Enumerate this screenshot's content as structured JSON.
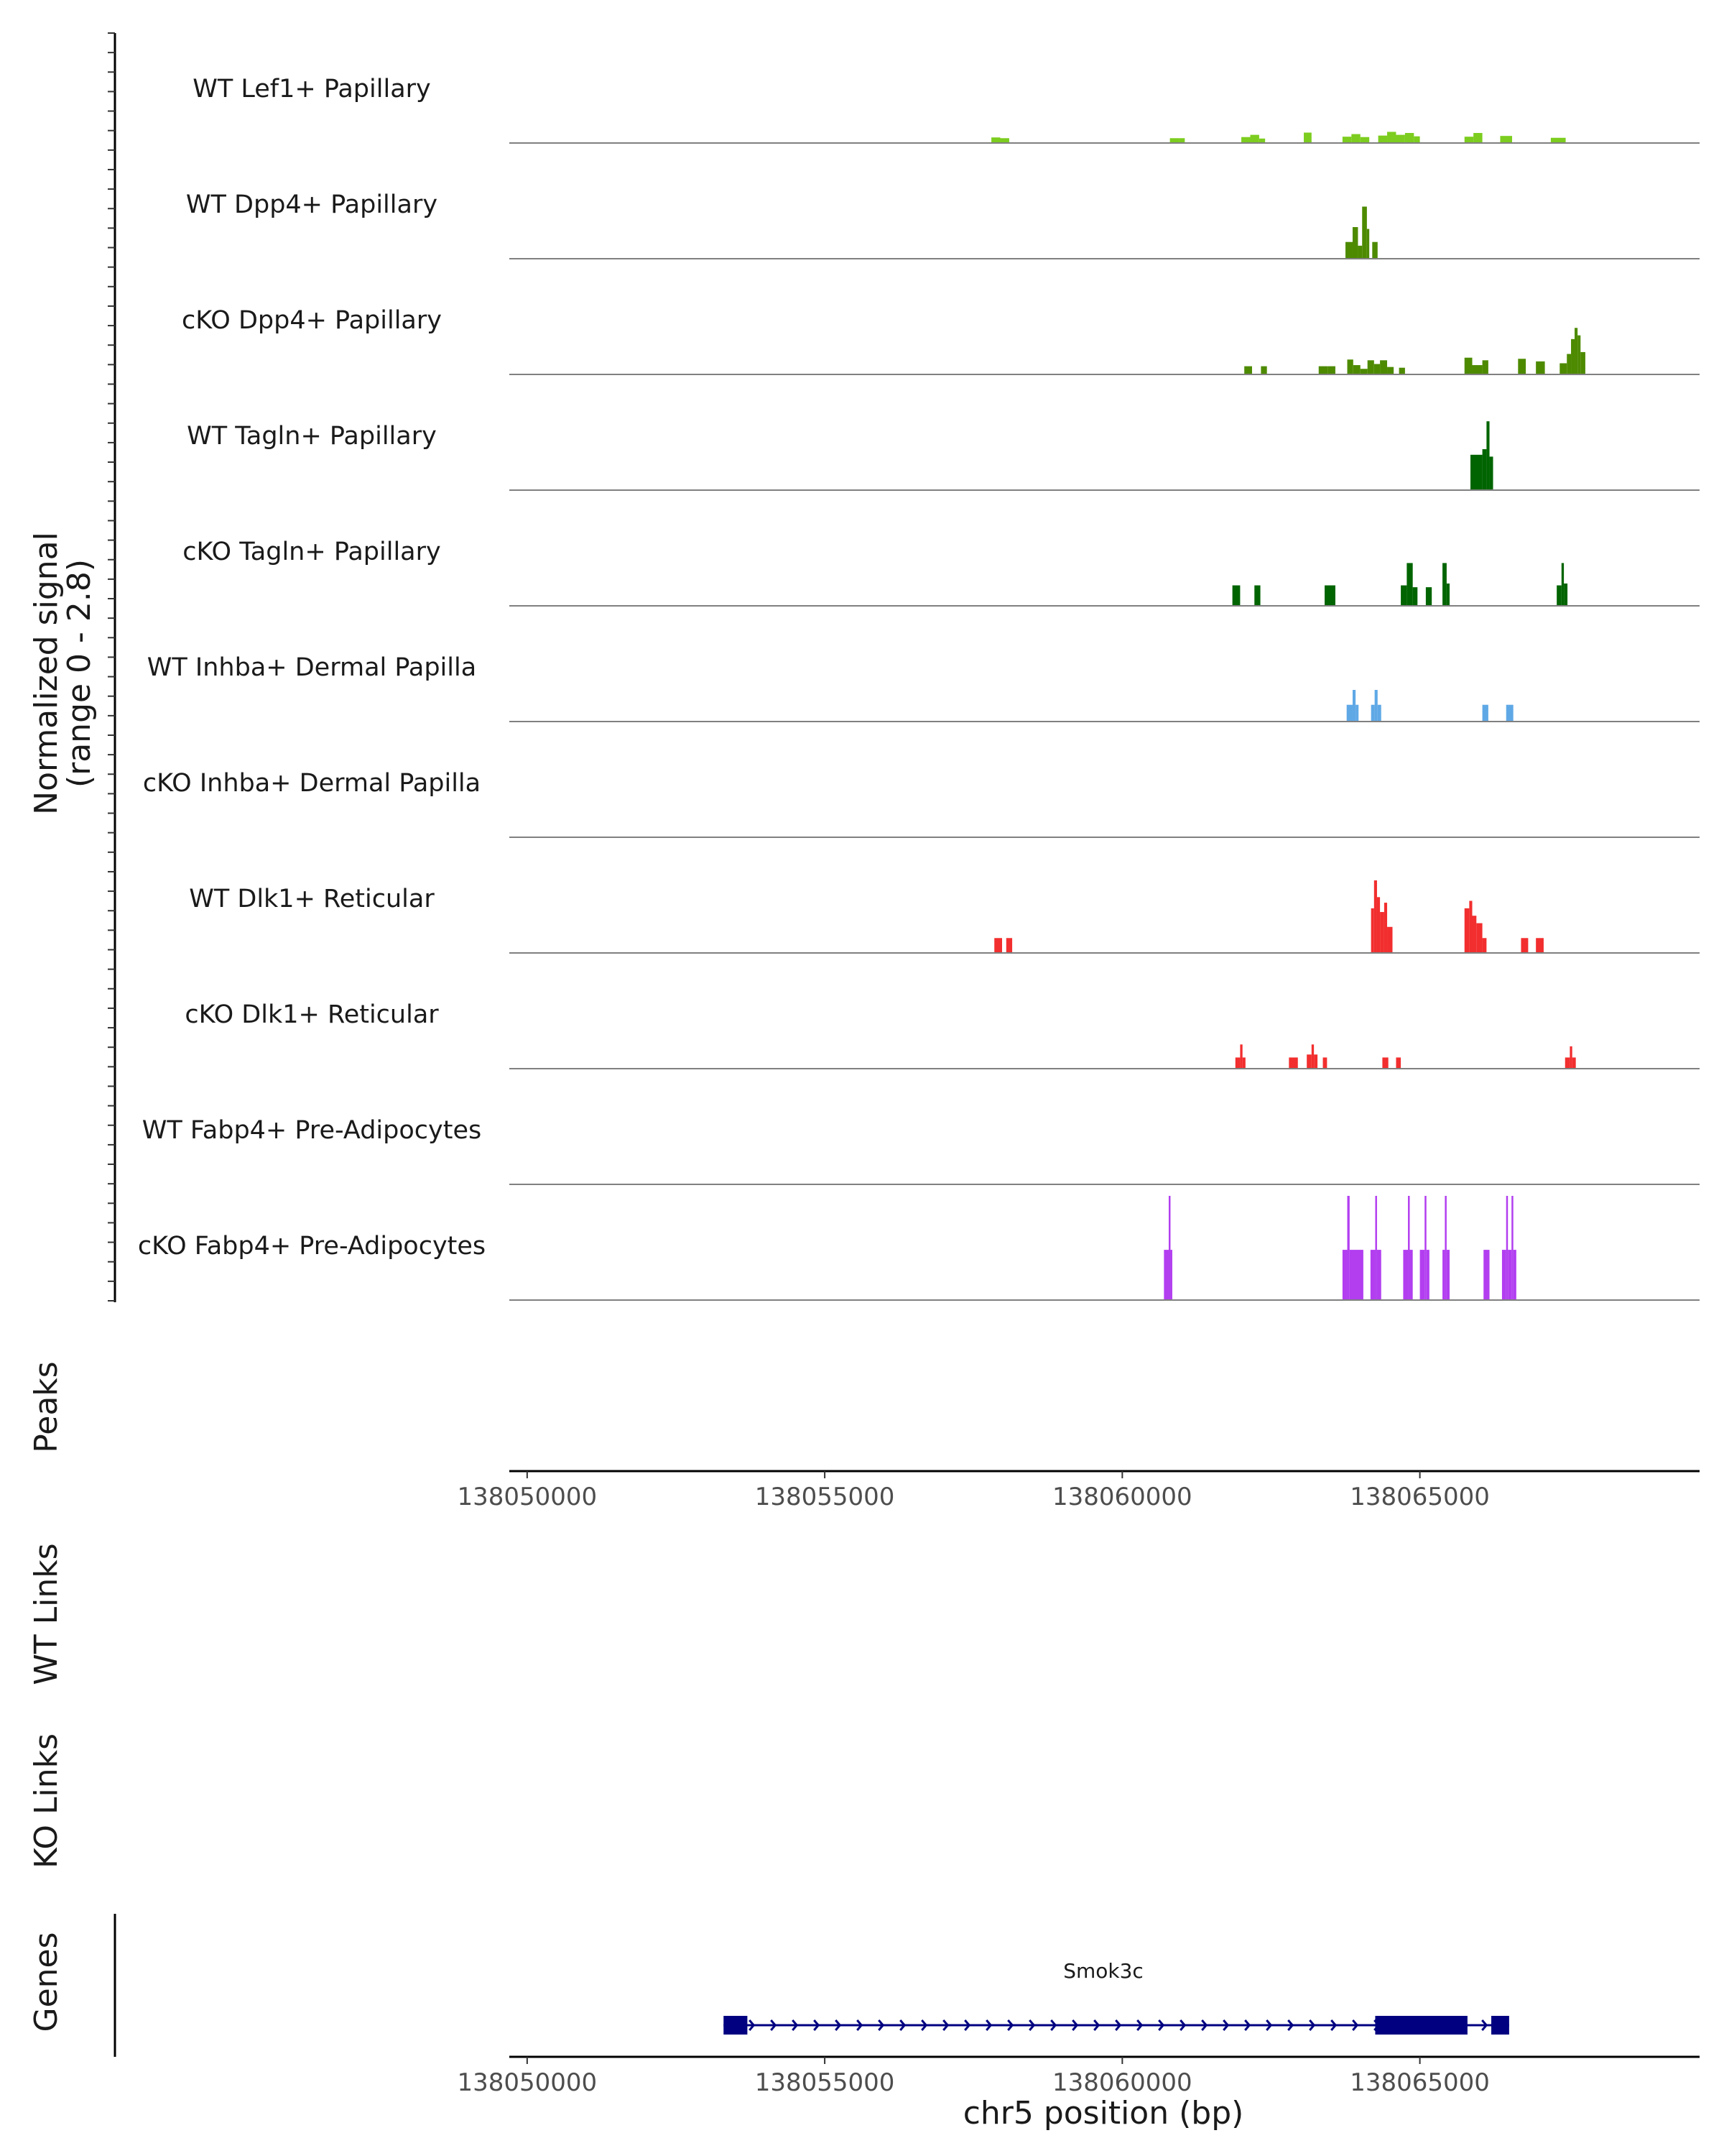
{
  "chart_data": {
    "type": "area",
    "title": "",
    "chromosome": "chr5",
    "xlabel": "chr5 position (bp)",
    "xlim": [
      138049700,
      138069700
    ],
    "xticks": [
      138050000,
      138055000,
      138060000,
      138065000
    ],
    "xtick_labels": [
      "138050000",
      "138055000",
      "138060000",
      "138065000"
    ],
    "ylabel": "Normalized signal",
    "ylabel_range": "(range 0 - 2.8)",
    "ylim": [
      0,
      2.8
    ],
    "tracks": [
      {
        "name": "WT Lef1+ Papillary",
        "color": "#7ccd1f",
        "peaks": [
          [
            138057800,
            138057950,
            0.15
          ],
          [
            138057950,
            138058100,
            0.13
          ],
          [
            138060800,
            138060950,
            0.13
          ],
          [
            138060950,
            138061050,
            0.13
          ],
          [
            138062000,
            138062150,
            0.16
          ],
          [
            138062150,
            138062300,
            0.22
          ],
          [
            138062300,
            138062400,
            0.12
          ],
          [
            138063050,
            138063180,
            0.28
          ],
          [
            138063700,
            138063850,
            0.17
          ],
          [
            138063850,
            138064000,
            0.24
          ],
          [
            138064000,
            138064150,
            0.16
          ],
          [
            138064300,
            138064450,
            0.2
          ],
          [
            138064450,
            138064600,
            0.3
          ],
          [
            138064600,
            138064750,
            0.22
          ],
          [
            138064750,
            138064900,
            0.27
          ],
          [
            138064900,
            138065000,
            0.18
          ],
          [
            138065750,
            138065900,
            0.17
          ],
          [
            138065900,
            138066050,
            0.27
          ],
          [
            138066350,
            138066550,
            0.19
          ],
          [
            138067200,
            138067450,
            0.14
          ]
        ]
      },
      {
        "name": "WT Dpp4+ Papillary",
        "color": "#4d8a00",
        "peaks": [
          [
            138063750,
            138063870,
            0.45
          ],
          [
            138063870,
            138063960,
            0.85
          ],
          [
            138063960,
            138064030,
            0.35
          ],
          [
            138064030,
            138064110,
            1.4
          ],
          [
            138064110,
            138064150,
            0.8
          ],
          [
            138064200,
            138064290,
            0.45
          ]
        ]
      },
      {
        "name": "cKO Dpp4+ Papillary",
        "color": "#4d8a00",
        "peaks": [
          [
            138062050,
            138062180,
            0.22
          ],
          [
            138062330,
            138062430,
            0.22
          ],
          [
            138063300,
            138063450,
            0.22
          ],
          [
            138063450,
            138063580,
            0.22
          ],
          [
            138063780,
            138063880,
            0.4
          ],
          [
            138063880,
            138064000,
            0.25
          ],
          [
            138064000,
            138064120,
            0.15
          ],
          [
            138064120,
            138064230,
            0.38
          ],
          [
            138064230,
            138064330,
            0.28
          ],
          [
            138064330,
            138064450,
            0.38
          ],
          [
            138064450,
            138064560,
            0.2
          ],
          [
            138064650,
            138064750,
            0.18
          ],
          [
            138065750,
            138065880,
            0.45
          ],
          [
            138065880,
            138066050,
            0.25
          ],
          [
            138066050,
            138066150,
            0.38
          ],
          [
            138066650,
            138066780,
            0.42
          ],
          [
            138066950,
            138067100,
            0.35
          ],
          [
            138067350,
            138067470,
            0.3
          ],
          [
            138067470,
            138067540,
            0.55
          ],
          [
            138067540,
            138067600,
            0.95
          ],
          [
            138067600,
            138067650,
            1.25
          ],
          [
            138067650,
            138067700,
            1.05
          ],
          [
            138067700,
            138067780,
            0.6
          ]
        ]
      },
      {
        "name": "WT Tagln+ Papillary",
        "color": "#006400",
        "peaks": [
          [
            138065850,
            138066050,
            0.95
          ],
          [
            138066050,
            138066120,
            1.1
          ],
          [
            138066120,
            138066170,
            1.85
          ],
          [
            138066170,
            138066230,
            0.9
          ]
        ]
      },
      {
        "name": "cKO Tagln+ Papillary",
        "color": "#006400",
        "peaks": [
          [
            138061850,
            138061980,
            0.55
          ],
          [
            138062220,
            138062320,
            0.55
          ],
          [
            138063400,
            138063580,
            0.55
          ],
          [
            138064680,
            138064780,
            0.55
          ],
          [
            138064780,
            138064880,
            1.15
          ],
          [
            138064880,
            138064960,
            0.5
          ],
          [
            138065100,
            138065200,
            0.5
          ],
          [
            138065380,
            138065450,
            1.15
          ],
          [
            138065450,
            138065500,
            0.6
          ],
          [
            138067300,
            138067380,
            0.55
          ],
          [
            138067380,
            138067420,
            1.15
          ],
          [
            138067420,
            138067480,
            0.6
          ]
        ]
      },
      {
        "name": "WT Inhba+ Dermal Papilla",
        "color": "#5fa8e6",
        "peaks": [
          [
            138063770,
            138063870,
            0.45
          ],
          [
            138063870,
            138063920,
            0.85
          ],
          [
            138063920,
            138063970,
            0.45
          ],
          [
            138064180,
            138064240,
            0.45
          ],
          [
            138064240,
            138064290,
            0.85
          ],
          [
            138064290,
            138064350,
            0.45
          ],
          [
            138066050,
            138066150,
            0.45
          ],
          [
            138066450,
            138066570,
            0.45
          ]
        ]
      },
      {
        "name": "cKO Inhba+ Dermal Papilla",
        "color": "#5fa8e6",
        "peaks": []
      },
      {
        "name": "WT Dlk1+ Reticular",
        "color": "#f22e2e",
        "peaks": [
          [
            138057850,
            138057980,
            0.4
          ],
          [
            138058050,
            138058150,
            0.4
          ],
          [
            138064180,
            138064230,
            1.2
          ],
          [
            138064230,
            138064280,
            1.95
          ],
          [
            138064280,
            138064330,
            1.5
          ],
          [
            138064330,
            138064400,
            1.1
          ],
          [
            138064400,
            138064450,
            1.35
          ],
          [
            138064450,
            138064540,
            0.7
          ],
          [
            138065750,
            138065830,
            1.2
          ],
          [
            138065830,
            138065880,
            1.4
          ],
          [
            138065880,
            138065950,
            1.0
          ],
          [
            138065950,
            138066050,
            0.8
          ],
          [
            138066050,
            138066120,
            0.4
          ],
          [
            138066700,
            138066820,
            0.4
          ],
          [
            138066950,
            138067080,
            0.4
          ]
        ]
      },
      {
        "name": "cKO Dlk1+ Reticular",
        "color": "#f22e2e",
        "peaks": [
          [
            138061900,
            138061980,
            0.3
          ],
          [
            138061980,
            138062020,
            0.65
          ],
          [
            138062020,
            138062070,
            0.3
          ],
          [
            138062800,
            138062950,
            0.3
          ],
          [
            138063100,
            138063180,
            0.38
          ],
          [
            138063180,
            138063220,
            0.65
          ],
          [
            138063220,
            138063280,
            0.38
          ],
          [
            138063370,
            138063440,
            0.3
          ],
          [
            138064370,
            138064470,
            0.3
          ],
          [
            138064600,
            138064680,
            0.3
          ],
          [
            138067440,
            138067520,
            0.3
          ],
          [
            138067520,
            138067560,
            0.6
          ],
          [
            138067560,
            138067620,
            0.3
          ]
        ]
      },
      {
        "name": "WT Fabp4+ Pre-Adipocytes",
        "color": "#b23ef0",
        "peaks": []
      },
      {
        "name": "cKO Fabp4+ Pre-Adipocytes",
        "color": "#b23ef0",
        "peaks": [
          [
            138060700,
            138060780,
            1.35
          ],
          [
            138060780,
            138060810,
            2.8
          ],
          [
            138060810,
            138060840,
            1.35
          ],
          [
            138063700,
            138063780,
            1.35
          ],
          [
            138063780,
            138063820,
            2.8
          ],
          [
            138063820,
            138064050,
            1.35
          ],
          [
            138064170,
            138064250,
            1.35
          ],
          [
            138064250,
            138064280,
            2.8
          ],
          [
            138064280,
            138064350,
            1.35
          ],
          [
            138064720,
            138064800,
            1.35
          ],
          [
            138064800,
            138064830,
            2.8
          ],
          [
            138064830,
            138064880,
            1.35
          ],
          [
            138065000,
            138065080,
            1.35
          ],
          [
            138065080,
            138065110,
            2.8
          ],
          [
            138065110,
            138065160,
            1.35
          ],
          [
            138065380,
            138065420,
            1.35
          ],
          [
            138065420,
            138065450,
            2.8
          ],
          [
            138065450,
            138065500,
            1.35
          ],
          [
            138066070,
            138066170,
            1.35
          ],
          [
            138066380,
            138066450,
            1.35
          ],
          [
            138066450,
            138066480,
            2.8
          ],
          [
            138066480,
            138066540,
            1.35
          ],
          [
            138066540,
            138066570,
            2.8
          ],
          [
            138066570,
            138066620,
            1.35
          ]
        ]
      }
    ],
    "panels": {
      "peaks": "Peaks",
      "wt_links": "WT Links",
      "ko_links": "KO Links",
      "genes": "Genes"
    },
    "gene": {
      "name": "Smok3c",
      "color": "#000080",
      "strand": "+",
      "start": 138053300,
      "end": 138066500,
      "exons": [
        [
          138053300,
          138053700
        ],
        [
          138064250,
          138065800
        ],
        [
          138066200,
          138066500
        ]
      ]
    }
  }
}
